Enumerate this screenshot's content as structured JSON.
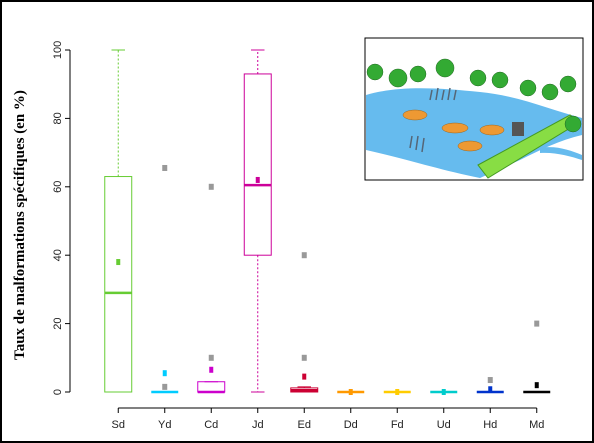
{
  "chart_data": {
    "type": "box",
    "y_label": "Taux de malformations spécifiques (en %)",
    "categories": [
      "Sd",
      "Yd",
      "Cd",
      "Jd",
      "Ed",
      "Dd",
      "Fd",
      "Ud",
      "Hd",
      "Md"
    ],
    "boxes": [
      {
        "color": "#66cc33",
        "min": 0,
        "q1": 0,
        "median": 29,
        "q3": 63,
        "max": 100,
        "mean": 38,
        "outliers": []
      },
      {
        "color": "#00ccff",
        "min": 0,
        "q1": 0,
        "median": 0,
        "q3": 0,
        "max": 0,
        "mean": 5.5,
        "outliers": [
          65.5,
          1.5
        ]
      },
      {
        "color": "#cc00cc",
        "min": 0,
        "q1": 0,
        "median": 0,
        "q3": 3,
        "max": 3,
        "mean": 6.5,
        "outliers": [
          60,
          10
        ]
      },
      {
        "color": "#cc0099",
        "min": 0,
        "q1": 40,
        "median": 60.5,
        "q3": 93,
        "max": 100,
        "mean": 62,
        "outliers": []
      },
      {
        "color": "#cc0033",
        "min": 0,
        "q1": 0,
        "median": 0.5,
        "q3": 1.2,
        "max": 1.5,
        "mean": 4.5,
        "outliers": [
          40,
          10
        ]
      },
      {
        "color": "#ff9900",
        "min": 0,
        "q1": 0,
        "median": 0,
        "q3": 0,
        "max": 0,
        "mean": 0,
        "outliers": []
      },
      {
        "color": "#ffcc00",
        "min": 0,
        "q1": 0,
        "median": 0,
        "q3": 0,
        "max": 0,
        "mean": 0,
        "outliers": []
      },
      {
        "color": "#00cccc",
        "min": 0,
        "q1": 0,
        "median": 0,
        "q3": 0,
        "max": 0,
        "mean": 0,
        "outliers": []
      },
      {
        "color": "#0033cc",
        "min": 0,
        "q1": 0,
        "median": 0,
        "q3": 0,
        "max": 0,
        "mean": 0.8,
        "outliers": [
          3.5
        ]
      },
      {
        "color": "#000000",
        "min": 0,
        "q1": 0,
        "median": 0,
        "q3": 0,
        "max": 0,
        "mean": 2,
        "outliers": [
          20
        ]
      }
    ],
    "outlier_color": "#999999",
    "ylim": [
      0,
      100
    ],
    "yticks": [
      0,
      20,
      40,
      60,
      80,
      100
    ]
  }
}
